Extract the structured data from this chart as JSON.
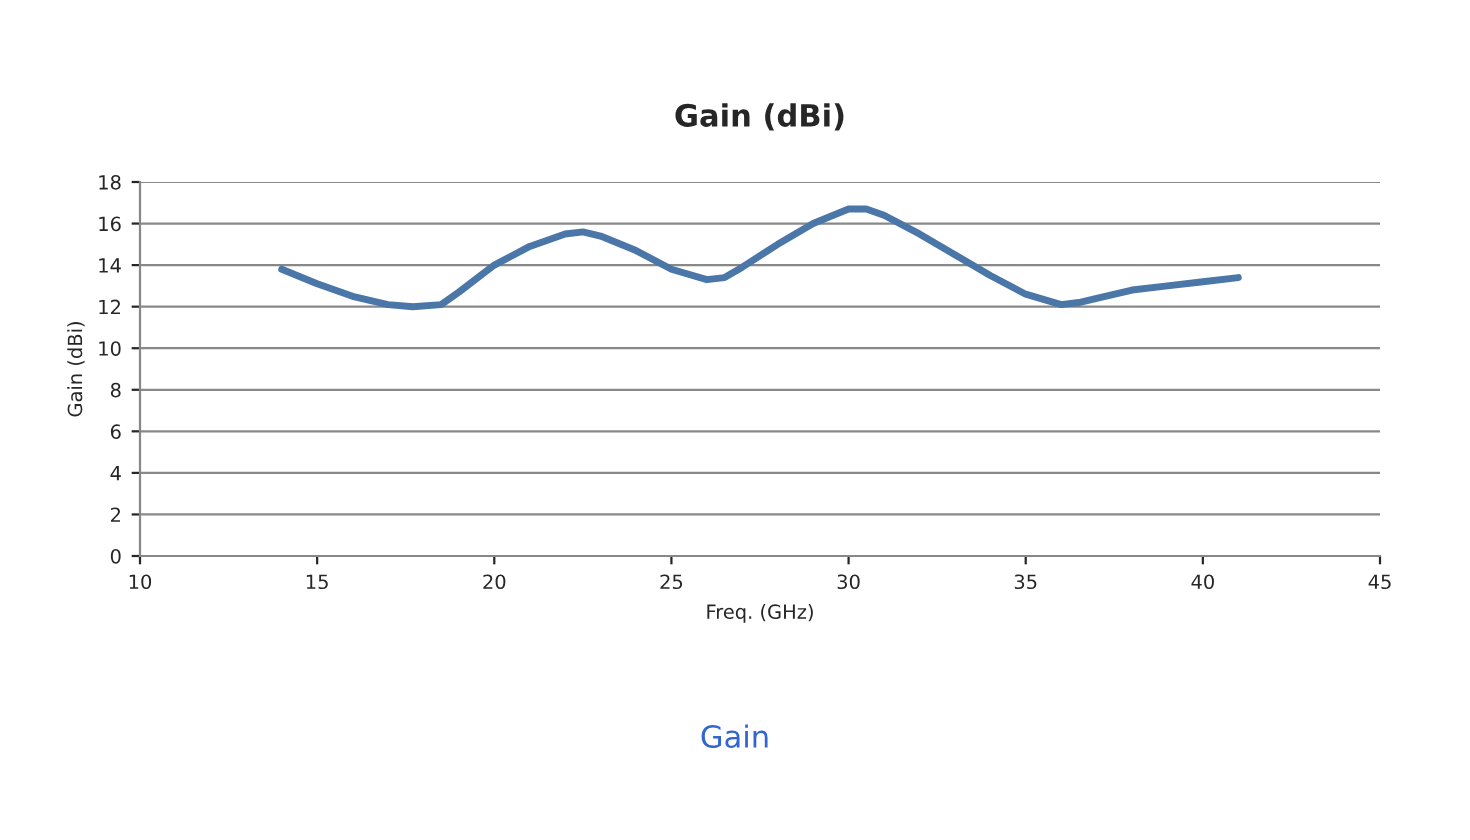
{
  "chart_data": {
    "type": "line",
    "title": "Gain (dBi)",
    "xlabel": "Freq. (GHz)",
    "ylabel": "Gain (dBi)",
    "annotations": [
      "Gain"
    ],
    "x": [
      14,
      15,
      16,
      17,
      17.7,
      18.5,
      19,
      20,
      21,
      22,
      22.5,
      23,
      24,
      25,
      26,
      26.5,
      27,
      28,
      29,
      30,
      30.5,
      31,
      32,
      33,
      34,
      35,
      36,
      36.5,
      37,
      38,
      39,
      40,
      41
    ],
    "series": [
      {
        "color": "#4a76a8",
        "values": [
          13.8,
          13.1,
          12.5,
          12.1,
          12.0,
          12.1,
          12.7,
          14.0,
          14.9,
          15.5,
          15.6,
          15.4,
          14.7,
          13.8,
          13.3,
          13.4,
          13.9,
          15.0,
          16.0,
          16.7,
          16.7,
          16.4,
          15.5,
          14.5,
          13.5,
          12.6,
          12.1,
          12.2,
          12.4,
          12.8,
          13.0,
          13.2,
          13.4
        ]
      }
    ],
    "xlim": [
      10,
      45
    ],
    "xticks": [
      10,
      15,
      20,
      25,
      30,
      35,
      40,
      45
    ],
    "ylim": [
      0,
      18
    ],
    "yticks": [
      0,
      2,
      4,
      6,
      8,
      10,
      12,
      14,
      16,
      18
    ],
    "grid": "y",
    "marker": "none",
    "line_style": "solid"
  }
}
